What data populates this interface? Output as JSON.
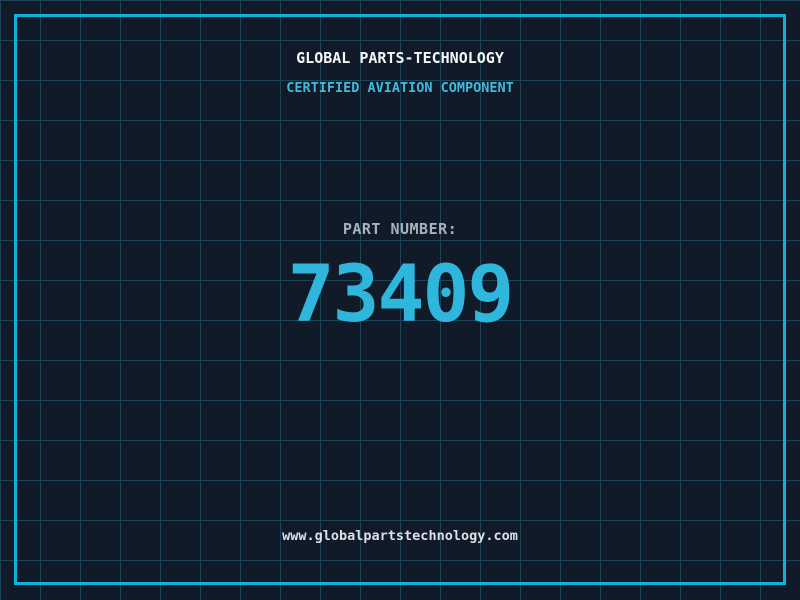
{
  "header": {
    "title": "GLOBAL PARTS-TECHNOLOGY",
    "subtitle": "CERTIFIED AVIATION COMPONENT"
  },
  "part": {
    "label": "PART NUMBER:",
    "number": "73409"
  },
  "footer": {
    "website": "www.globalpartstechnology.com"
  },
  "colors": {
    "background": "#101a29",
    "grid_line": "#1b4659",
    "frame": "#0fb3da",
    "title": "#f4f6f8",
    "subtitle": "#46b8d9",
    "label": "#a8b2bc",
    "number": "#2fb6dc",
    "footer_text": "#dce1e5"
  }
}
